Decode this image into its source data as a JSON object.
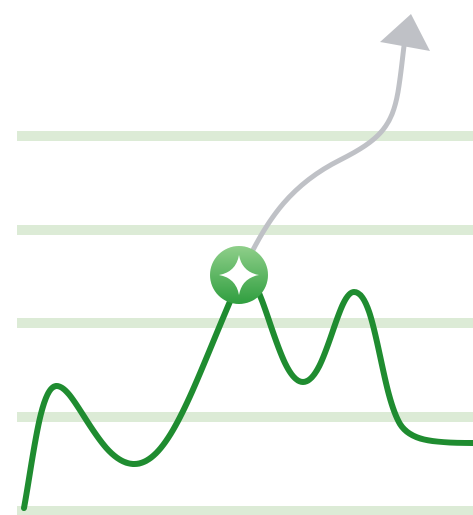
{
  "colors": {
    "background": "#ffffff",
    "gridline": "#dcebd6",
    "trend_line": "#1f8c30",
    "projection_arrow": "#bfc1c6",
    "marker_gradient_top": "#8fcf8a",
    "marker_gradient_bottom": "#2f9e3f",
    "marker_sparkle": "#ffffff"
  },
  "icons": {
    "marker": "sparkle-icon",
    "arrowhead": "arrowhead-icon"
  },
  "gridline_count": 5
}
